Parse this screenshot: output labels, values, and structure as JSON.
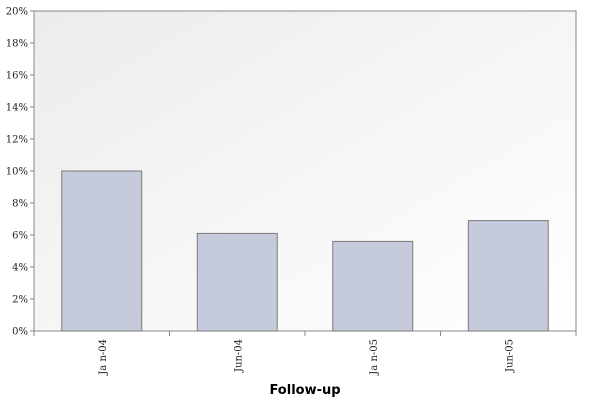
{
  "chart_data": {
    "type": "bar",
    "title": "",
    "xlabel": "Follow-up",
    "ylabel": "",
    "categories": [
      "Ja n-04",
      "Jun-04",
      "Ja n-05",
      "Jun-05"
    ],
    "values": [
      10.0,
      6.1,
      5.6,
      6.9
    ],
    "ylim": [
      0,
      20
    ],
    "y_ticks": [
      0,
      2,
      4,
      6,
      8,
      10,
      12,
      14,
      16,
      18,
      20
    ],
    "y_tick_labels": [
      "0%",
      "2%",
      "4%",
      "6%",
      "8%",
      "10%",
      "12%",
      "14%",
      "16%",
      "18%",
      "20%"
    ],
    "grid": false,
    "legend": "none",
    "colors": {
      "bar_fill": "#c5cadc",
      "bar_stroke": "#7a7a7a",
      "plot_bg_start": "#ececec",
      "plot_bg_end": "#ffffff",
      "axis": "#888888"
    }
  }
}
